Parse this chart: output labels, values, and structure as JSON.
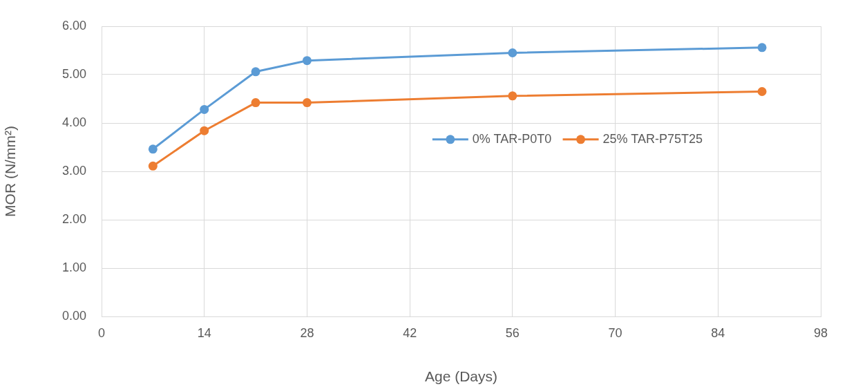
{
  "chart_data": {
    "type": "line",
    "xlabel": "Age (Days)",
    "ylabel": "MOR (N/mm²)",
    "x": [
      7,
      14,
      21,
      28,
      56,
      90
    ],
    "series": [
      {
        "name": "0% TAR-P0T0",
        "color": "#5b9bd5",
        "values": [
          3.46,
          4.28,
          5.06,
          5.29,
          5.45,
          5.56
        ]
      },
      {
        "name": "25% TAR-P75T25",
        "color": "#ed7d31",
        "values": [
          3.11,
          3.84,
          4.42,
          4.42,
          4.56,
          4.65
        ]
      }
    ],
    "xlim": [
      0,
      98
    ],
    "xticks": [
      0,
      14,
      28,
      42,
      56,
      70,
      84,
      98
    ],
    "ylim": [
      0,
      6
    ],
    "yticks": [
      {
        "value": 0,
        "label": "0.00"
      },
      {
        "value": 1,
        "label": "1.00"
      },
      {
        "value": 2,
        "label": "2.00"
      },
      {
        "value": 3,
        "label": "3.00"
      },
      {
        "value": 4,
        "label": "4.00"
      },
      {
        "value": 5,
        "label": "5.00"
      },
      {
        "value": 6,
        "label": "6.00"
      }
    ],
    "grid": true,
    "legend": "right",
    "marker": "circle",
    "line_style": "solid"
  }
}
